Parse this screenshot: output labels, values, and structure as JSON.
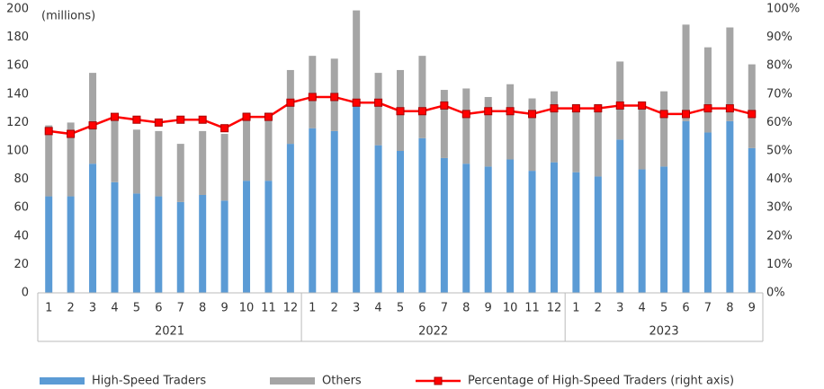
{
  "chart_data": {
    "type": "bar",
    "unit_label": "(millions)",
    "categories": [
      "1",
      "2",
      "3",
      "4",
      "5",
      "6",
      "7",
      "8",
      "9",
      "10",
      "11",
      "12",
      "1",
      "2",
      "3",
      "4",
      "5",
      "6",
      "7",
      "8",
      "9",
      "10",
      "11",
      "12",
      "1",
      "2",
      "3",
      "4",
      "5",
      "6",
      "7",
      "8",
      "9"
    ],
    "years": [
      "2021",
      "2022",
      "2023"
    ],
    "stacked": true,
    "grid": false,
    "legend": "bottom",
    "series": [
      {
        "name": "High-Speed Traders",
        "color": "#5b9bd5",
        "values": [
          68,
          68,
          91,
          78,
          70,
          68,
          64,
          69,
          65,
          79,
          79,
          105,
          116,
          114,
          131,
          104,
          100,
          109,
          95,
          91,
          89,
          94,
          86,
          92,
          85,
          82,
          108,
          87,
          89,
          121,
          113,
          121,
          102
        ]
      },
      {
        "name": "Others",
        "color": "#a5a5a5",
        "values": [
          50,
          52,
          64,
          48,
          45,
          46,
          41,
          45,
          47,
          48,
          48,
          52,
          51,
          51,
          68,
          51,
          57,
          58,
          48,
          53,
          49,
          53,
          51,
          50,
          48,
          51,
          55,
          47,
          53,
          68,
          60,
          66,
          59
        ]
      },
      {
        "name": "Percentage of High-Speed Traders (right axis)",
        "color": "#ff0000",
        "axis": "y2",
        "type": "line",
        "values": [
          57,
          56,
          59,
          62,
          61,
          60,
          61,
          61,
          58,
          62,
          62,
          67,
          69,
          69,
          67,
          67,
          64,
          64,
          66,
          63,
          64,
          64,
          63,
          65,
          65,
          65,
          66,
          66,
          63,
          63,
          65,
          65,
          63
        ]
      }
    ],
    "ylim": [
      0,
      200
    ],
    "yticks": [
      0,
      20,
      40,
      60,
      80,
      100,
      120,
      140,
      160,
      180,
      200
    ],
    "y2lim": [
      0,
      100
    ],
    "y2ticks": [
      {
        "value": 0,
        "label": "0%"
      },
      {
        "value": 10,
        "label": "10%"
      },
      {
        "value": 20,
        "label": "20%"
      },
      {
        "value": 30,
        "label": "30%"
      },
      {
        "value": 40,
        "label": "40%"
      },
      {
        "value": 50,
        "label": "50%"
      },
      {
        "value": 60,
        "label": "60%"
      },
      {
        "value": 70,
        "label": "70%"
      },
      {
        "value": 80,
        "label": "80%"
      },
      {
        "value": 90,
        "label": "90%"
      },
      {
        "value": 100,
        "label": "100%"
      }
    ]
  }
}
